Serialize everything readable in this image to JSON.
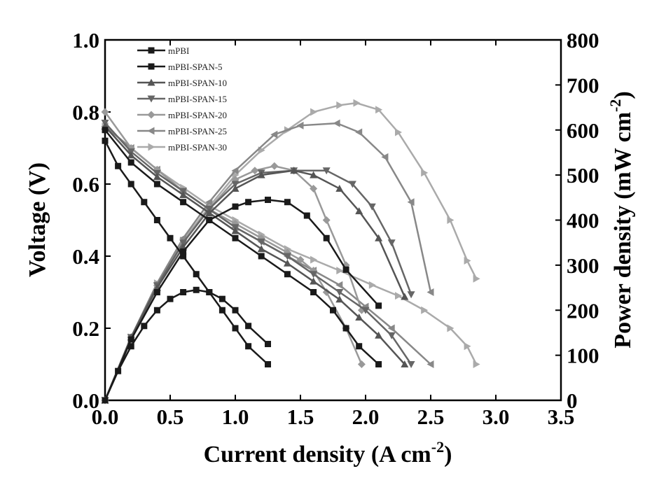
{
  "chart_data": {
    "type": "line",
    "xlabel": "Current density (A cm",
    "xlabel_sup": "-2",
    "xlabel_end": ")",
    "ylabel_left": "Voltage (V)",
    "ylabel_right": "Power density (mW cm",
    "ylabel_right_sup": "-2",
    "ylabel_right_end": ")",
    "xlim": [
      0.0,
      3.5
    ],
    "ylim_left": [
      0.0,
      1.0
    ],
    "ylim_right": [
      0,
      800
    ],
    "x_ticks": [
      "0.0",
      "0.5",
      "1.0",
      "1.5",
      "2.0",
      "2.5",
      "3.0",
      "3.5"
    ],
    "y_left_ticks": [
      "0.0",
      "0.2",
      "0.4",
      "0.6",
      "0.8",
      "1.0"
    ],
    "y_right_ticks": [
      "0",
      "100",
      "200",
      "300",
      "400",
      "500",
      "600",
      "700",
      "800"
    ],
    "legend_position": "top-left",
    "series": [
      {
        "name": "mPBI",
        "color": "#1a1a1a",
        "marker": "square",
        "voltage": [
          [
            0.0,
            0.72
          ],
          [
            0.1,
            0.65
          ],
          [
            0.2,
            0.6
          ],
          [
            0.3,
            0.55
          ],
          [
            0.4,
            0.5
          ],
          [
            0.5,
            0.45
          ],
          [
            0.6,
            0.4
          ],
          [
            0.7,
            0.35
          ],
          [
            0.8,
            0.3
          ],
          [
            0.9,
            0.25
          ],
          [
            1.0,
            0.2
          ],
          [
            1.1,
            0.15
          ],
          [
            1.25,
            0.1
          ]
        ],
        "power": [
          [
            0.0,
            0
          ],
          [
            0.1,
            65
          ],
          [
            0.2,
            120
          ],
          [
            0.3,
            165
          ],
          [
            0.4,
            200
          ],
          [
            0.5,
            225
          ],
          [
            0.6,
            240
          ],
          [
            0.7,
            245
          ],
          [
            0.8,
            240
          ],
          [
            0.9,
            225
          ],
          [
            1.0,
            200
          ],
          [
            1.1,
            165
          ],
          [
            1.25,
            125
          ]
        ]
      },
      {
        "name": "mPBI-SPAN-5",
        "color": "#1a1a1a",
        "marker": "square",
        "voltage": [
          [
            0.0,
            0.75
          ],
          [
            0.2,
            0.66
          ],
          [
            0.4,
            0.6
          ],
          [
            0.6,
            0.55
          ],
          [
            0.8,
            0.5
          ],
          [
            1.0,
            0.45
          ],
          [
            1.2,
            0.4
          ],
          [
            1.4,
            0.35
          ],
          [
            1.6,
            0.3
          ],
          [
            1.75,
            0.25
          ],
          [
            1.85,
            0.2
          ],
          [
            1.95,
            0.15
          ],
          [
            2.1,
            0.1
          ]
        ],
        "power": [
          [
            0.0,
            0
          ],
          [
            0.2,
            135
          ],
          [
            0.4,
            240
          ],
          [
            0.6,
            330
          ],
          [
            0.8,
            400
          ],
          [
            1.0,
            430
          ],
          [
            1.1,
            440
          ],
          [
            1.25,
            445
          ],
          [
            1.4,
            440
          ],
          [
            1.55,
            410
          ],
          [
            1.7,
            360
          ],
          [
            1.85,
            290
          ],
          [
            2.1,
            210
          ]
        ]
      },
      {
        "name": "mPBI-SPAN-10",
        "color": "#555555",
        "marker": "triangle",
        "voltage": [
          [
            0.0,
            0.76
          ],
          [
            0.2,
            0.68
          ],
          [
            0.4,
            0.62
          ],
          [
            0.6,
            0.57
          ],
          [
            0.8,
            0.52
          ],
          [
            1.0,
            0.47
          ],
          [
            1.2,
            0.42
          ],
          [
            1.4,
            0.38
          ],
          [
            1.6,
            0.33
          ],
          [
            1.8,
            0.28
          ],
          [
            1.95,
            0.23
          ],
          [
            2.1,
            0.18
          ],
          [
            2.3,
            0.1
          ]
        ],
        "power": [
          [
            0.0,
            0
          ],
          [
            0.2,
            140
          ],
          [
            0.4,
            250
          ],
          [
            0.6,
            340
          ],
          [
            0.8,
            415
          ],
          [
            1.0,
            470
          ],
          [
            1.2,
            500
          ],
          [
            1.45,
            510
          ],
          [
            1.6,
            500
          ],
          [
            1.8,
            470
          ],
          [
            1.95,
            420
          ],
          [
            2.1,
            360
          ],
          [
            2.3,
            230
          ]
        ]
      },
      {
        "name": "mPBI-SPAN-15",
        "color": "#666666",
        "marker": "down-triangle",
        "voltage": [
          [
            0.0,
            0.77
          ],
          [
            0.2,
            0.69
          ],
          [
            0.4,
            0.63
          ],
          [
            0.6,
            0.58
          ],
          [
            0.8,
            0.53
          ],
          [
            1.0,
            0.48
          ],
          [
            1.2,
            0.44
          ],
          [
            1.4,
            0.4
          ],
          [
            1.6,
            0.35
          ],
          [
            1.8,
            0.3
          ],
          [
            2.0,
            0.25
          ],
          [
            2.2,
            0.18
          ],
          [
            2.35,
            0.1
          ]
        ],
        "power": [
          [
            0.0,
            0
          ],
          [
            0.2,
            140
          ],
          [
            0.4,
            255
          ],
          [
            0.6,
            350
          ],
          [
            0.8,
            425
          ],
          [
            1.0,
            480
          ],
          [
            1.2,
            505
          ],
          [
            1.45,
            510
          ],
          [
            1.7,
            510
          ],
          [
            1.9,
            480
          ],
          [
            2.05,
            430
          ],
          [
            2.2,
            350
          ],
          [
            2.35,
            235
          ]
        ]
      },
      {
        "name": "mPBI-SPAN-20",
        "color": "#999999",
        "marker": "diamond",
        "voltage": [
          [
            0.0,
            0.8
          ],
          [
            0.2,
            0.7
          ],
          [
            0.4,
            0.64
          ],
          [
            0.6,
            0.58
          ],
          [
            0.8,
            0.53
          ],
          [
            1.0,
            0.49
          ],
          [
            1.2,
            0.45
          ],
          [
            1.4,
            0.41
          ],
          [
            1.5,
            0.39
          ],
          [
            1.6,
            0.36
          ],
          [
            1.7,
            0.3
          ],
          [
            1.85,
            0.2
          ],
          [
            1.97,
            0.1
          ]
        ],
        "power": [
          [
            0.0,
            0
          ],
          [
            0.2,
            140
          ],
          [
            0.4,
            255
          ],
          [
            0.6,
            350
          ],
          [
            0.8,
            425
          ],
          [
            1.0,
            490
          ],
          [
            1.15,
            510
          ],
          [
            1.3,
            520
          ],
          [
            1.45,
            510
          ],
          [
            1.6,
            470
          ],
          [
            1.7,
            400
          ],
          [
            1.85,
            300
          ],
          [
            1.97,
            200
          ]
        ]
      },
      {
        "name": "mPBI-SPAN-25",
        "color": "#888888",
        "marker": "left-triangle",
        "voltage": [
          [
            0.0,
            0.76
          ],
          [
            0.2,
            0.7
          ],
          [
            0.4,
            0.64
          ],
          [
            0.6,
            0.58
          ],
          [
            0.8,
            0.53
          ],
          [
            1.0,
            0.48
          ],
          [
            1.2,
            0.44
          ],
          [
            1.4,
            0.4
          ],
          [
            1.6,
            0.36
          ],
          [
            1.8,
            0.32
          ],
          [
            2.0,
            0.26
          ],
          [
            2.2,
            0.2
          ],
          [
            2.5,
            0.1
          ]
        ],
        "power": [
          [
            0.0,
            0
          ],
          [
            0.2,
            140
          ],
          [
            0.4,
            260
          ],
          [
            0.6,
            360
          ],
          [
            0.8,
            440
          ],
          [
            1.0,
            510
          ],
          [
            1.3,
            590
          ],
          [
            1.5,
            610
          ],
          [
            1.78,
            615
          ],
          [
            1.95,
            595
          ],
          [
            2.15,
            540
          ],
          [
            2.35,
            440
          ],
          [
            2.5,
            240
          ]
        ]
      },
      {
        "name": "mPBI-SPAN-30",
        "color": "#aaaaaa",
        "marker": "right-triangle",
        "voltage": [
          [
            0.0,
            0.76
          ],
          [
            0.2,
            0.7
          ],
          [
            0.4,
            0.64
          ],
          [
            0.6,
            0.59
          ],
          [
            0.8,
            0.54
          ],
          [
            1.0,
            0.5
          ],
          [
            1.2,
            0.46
          ],
          [
            1.4,
            0.42
          ],
          [
            1.6,
            0.39
          ],
          [
            1.8,
            0.36
          ],
          [
            2.05,
            0.32
          ],
          [
            2.25,
            0.29
          ],
          [
            2.45,
            0.25
          ],
          [
            2.65,
            0.2
          ],
          [
            2.78,
            0.15
          ],
          [
            2.85,
            0.1
          ]
        ],
        "power": [
          [
            0.0,
            0
          ],
          [
            0.2,
            140
          ],
          [
            0.4,
            260
          ],
          [
            0.6,
            355
          ],
          [
            0.8,
            430
          ],
          [
            1.0,
            500
          ],
          [
            1.2,
            555
          ],
          [
            1.4,
            600
          ],
          [
            1.6,
            640
          ],
          [
            1.8,
            655
          ],
          [
            1.93,
            660
          ],
          [
            2.1,
            645
          ],
          [
            2.25,
            595
          ],
          [
            2.45,
            505
          ],
          [
            2.65,
            400
          ],
          [
            2.78,
            310
          ],
          [
            2.85,
            270
          ]
        ]
      }
    ]
  }
}
